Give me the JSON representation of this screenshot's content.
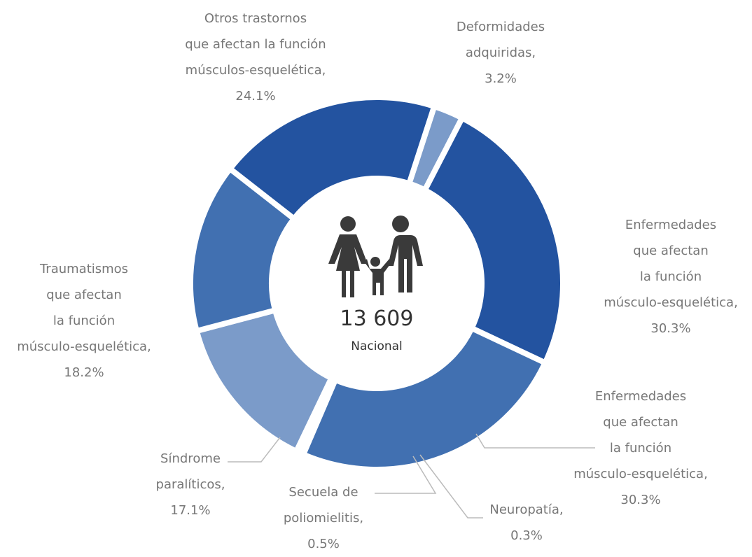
{
  "chart_data": {
    "type": "donut",
    "categories": [
      "Deformidades\nadquiridas,",
      "Enfermedades\nque afectan\nla función\nmúsculo-esquelética,",
      "Enfermedades\nque afectan\nla función\nmúsculo-esquelética,",
      "Neuropatía,",
      "Secuela de\npoliomielitis,",
      "Síndrome\nparalíticos,",
      "Traumatismos\nque afectan\nla función\nmúsculo-esquelética,",
      "Otros trastornos\nque afectan la función\nmúsculos-esquelética,"
    ],
    "values": [
      3.2,
      30.3,
      30.3,
      0.3,
      0.5,
      17.1,
      18.2,
      24.1
    ],
    "value_labels": [
      "3.2%",
      "30.3%",
      "30.3%",
      "0.3%",
      "0.5%",
      "17.1%",
      "18.2%",
      "24.1%"
    ],
    "colors": [
      "#7b9bc9",
      "#2353a0",
      "#4170b1",
      "#7b9bc9",
      "#4170b1",
      "#7b9bc9",
      "#4170b1",
      "#2353a0"
    ],
    "center_value": {
      "value": 13609,
      "label": "13 609"
    },
    "center_label": "Nacional"
  }
}
